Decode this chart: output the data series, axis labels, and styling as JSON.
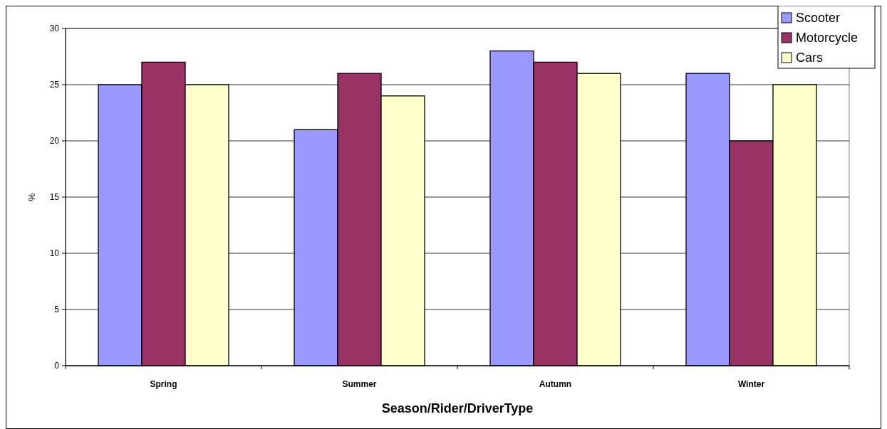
{
  "chart_data": {
    "type": "bar",
    "xlabel": "Season/Rider/DriverType",
    "ylabel": "%",
    "categories": [
      "Spring",
      "Summer",
      "Autumn",
      "Winter"
    ],
    "series": [
      {
        "name": "Scooter",
        "color": "#9999ff",
        "values": [
          25,
          21,
          28,
          26
        ]
      },
      {
        "name": "Motorcycle",
        "color": "#993366",
        "values": [
          27,
          26,
          27,
          20
        ]
      },
      {
        "name": "Cars",
        "color": "#ffffcc",
        "values": [
          25,
          24,
          26,
          25
        ]
      }
    ],
    "ylim": [
      0,
      30
    ],
    "yticks": [
      0,
      5,
      10,
      15,
      20,
      25,
      30
    ],
    "grid": "y",
    "legend": "top right"
  }
}
